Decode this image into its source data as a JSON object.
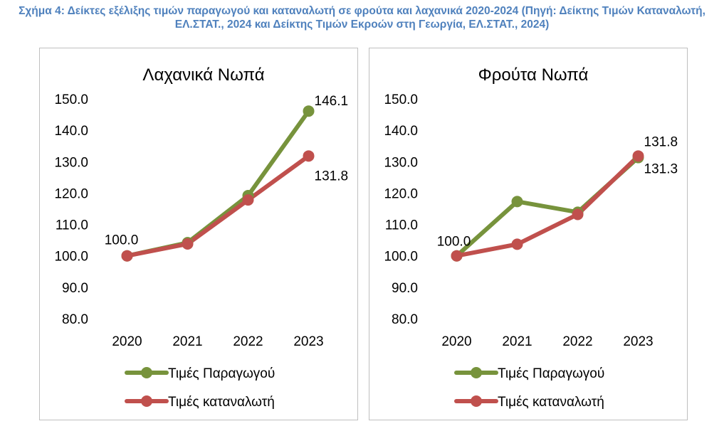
{
  "caption": "Σχήμα 4: Δείκτες εξέλιξης τιμών παραγωγού και καταναλωτή σε φρούτα και λαχανικά 2020-2024 (Πηγή: Δείκτης Τιμών Καταναλωτή, ΕΛ.ΣΤΑΤ., 2024 και Δείκτης Τιμών Εκροών στη Γεωργία, ΕΛ.ΣΤΑΤ., 2024)",
  "chart_data": [
    {
      "type": "line",
      "title": "Λαχανικά Νωπά",
      "categories": [
        "2020",
        "2021",
        "2022",
        "2023"
      ],
      "ylim": [
        80,
        150
      ],
      "yticks": [
        "80.0",
        "90.0",
        "100.0",
        "110.0",
        "120.0",
        "130.0",
        "140.0",
        "150.0"
      ],
      "grid": false,
      "legend": "bottom",
      "series": [
        {
          "name": "Τιμές Παραγωγού",
          "color": "#77933c",
          "values": [
            100.0,
            104.2,
            119.2,
            146.1
          ]
        },
        {
          "name": "Τιμές καταναλωτή",
          "color": "#c0504d",
          "values": [
            100.0,
            103.8,
            117.8,
            131.8
          ]
        }
      ],
      "data_labels": [
        "100.0",
        "146.1",
        "131.8"
      ]
    },
    {
      "type": "line",
      "title": "Φρούτα Νωπά",
      "categories": [
        "2020",
        "2021",
        "2022",
        "2023"
      ],
      "ylim": [
        80,
        150
      ],
      "yticks": [
        "80.0",
        "90.0",
        "100.0",
        "110.0",
        "120.0",
        "130.0",
        "140.0",
        "150.0"
      ],
      "grid": false,
      "legend": "bottom",
      "series": [
        {
          "name": "Τιμές Παραγωγού",
          "color": "#77933c",
          "values": [
            100.0,
            117.3,
            113.9,
            131.3
          ]
        },
        {
          "name": "Τιμές καταναλωτή",
          "color": "#c0504d",
          "values": [
            100.0,
            103.7,
            113.2,
            131.8
          ]
        }
      ],
      "data_labels": [
        "100.0",
        "131.8",
        "131.3"
      ]
    }
  ]
}
